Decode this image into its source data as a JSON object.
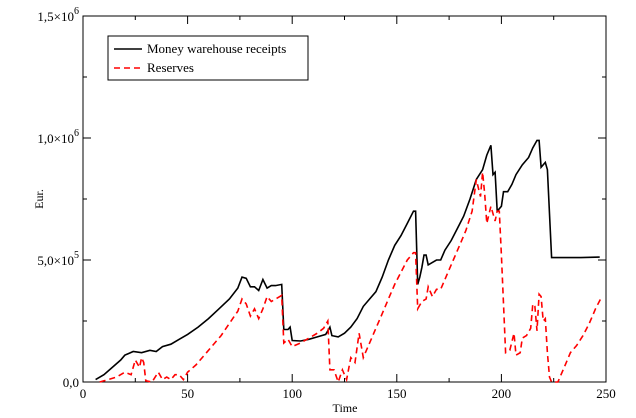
{
  "chart_data": {
    "type": "line",
    "xlabel": "Time",
    "ylabel": "Eur.",
    "xlim": [
      0,
      250
    ],
    "ylim": [
      0,
      1500000
    ],
    "x_ticks": [
      {
        "value": 0,
        "label": "0"
      },
      {
        "value": 50,
        "label": "50"
      },
      {
        "value": 100,
        "label": "100"
      },
      {
        "value": 150,
        "label": "150"
      },
      {
        "value": 200,
        "label": "200"
      },
      {
        "value": 250,
        "label": "250"
      }
    ],
    "y_ticks": [
      {
        "value": 0,
        "mantissa": "0,0",
        "exponent": ""
      },
      {
        "value": 500000,
        "mantissa": "5,0×10",
        "exponent": "5"
      },
      {
        "value": 1000000,
        "mantissa": "1,0×10",
        "exponent": "6"
      },
      {
        "value": 1500000,
        "mantissa": "1,5×10",
        "exponent": "6"
      }
    ],
    "grid": false,
    "legend_position": "top-left",
    "series": [
      {
        "name": "Money warehouse receipts",
        "color": "#000000",
        "dash": "solid",
        "points": [
          [
            6,
            10000
          ],
          [
            10,
            30000
          ],
          [
            14,
            60000
          ],
          [
            18,
            90000
          ],
          [
            20,
            110000
          ],
          [
            24,
            125000
          ],
          [
            28,
            120000
          ],
          [
            32,
            130000
          ],
          [
            35,
            125000
          ],
          [
            38,
            145000
          ],
          [
            42,
            155000
          ],
          [
            46,
            175000
          ],
          [
            50,
            195000
          ],
          [
            55,
            225000
          ],
          [
            60,
            260000
          ],
          [
            65,
            300000
          ],
          [
            70,
            340000
          ],
          [
            74,
            385000
          ],
          [
            76,
            430000
          ],
          [
            78,
            425000
          ],
          [
            80,
            390000
          ],
          [
            82,
            390000
          ],
          [
            84,
            375000
          ],
          [
            86,
            420000
          ],
          [
            88,
            385000
          ],
          [
            90,
            395000
          ],
          [
            92,
            395000
          ],
          [
            95,
            400000
          ],
          [
            96,
            215000
          ],
          [
            98,
            215000
          ],
          [
            99,
            225000
          ],
          [
            100,
            170000
          ],
          [
            104,
            168000
          ],
          [
            108,
            175000
          ],
          [
            112,
            185000
          ],
          [
            116,
            195000
          ],
          [
            118,
            225000
          ],
          [
            119,
            190000
          ],
          [
            122,
            185000
          ],
          [
            125,
            200000
          ],
          [
            128,
            225000
          ],
          [
            131,
            260000
          ],
          [
            134,
            310000
          ],
          [
            137,
            340000
          ],
          [
            140,
            370000
          ],
          [
            143,
            430000
          ],
          [
            146,
            500000
          ],
          [
            149,
            560000
          ],
          [
            152,
            600000
          ],
          [
            155,
            650000
          ],
          [
            158,
            700000
          ],
          [
            159,
            700000
          ],
          [
            160,
            400000
          ],
          [
            161,
            430000
          ],
          [
            162,
            470000
          ],
          [
            163,
            520000
          ],
          [
            164,
            520000
          ],
          [
            165,
            480000
          ],
          [
            167,
            490000
          ],
          [
            169,
            500000
          ],
          [
            171,
            500000
          ],
          [
            173,
            540000
          ],
          [
            176,
            580000
          ],
          [
            179,
            630000
          ],
          [
            182,
            680000
          ],
          [
            185,
            750000
          ],
          [
            188,
            830000
          ],
          [
            191,
            870000
          ],
          [
            193,
            930000
          ],
          [
            195,
            970000
          ],
          [
            196,
            850000
          ],
          [
            197,
            860000
          ],
          [
            198,
            700000
          ],
          [
            200,
            720000
          ],
          [
            201,
            780000
          ],
          [
            203,
            780000
          ],
          [
            205,
            810000
          ],
          [
            207,
            850000
          ],
          [
            210,
            890000
          ],
          [
            213,
            920000
          ],
          [
            215,
            960000
          ],
          [
            217,
            990000
          ],
          [
            218,
            990000
          ],
          [
            219,
            880000
          ],
          [
            221,
            900000
          ],
          [
            222,
            870000
          ],
          [
            224,
            510000
          ],
          [
            230,
            510000
          ],
          [
            238,
            510000
          ],
          [
            247,
            512000
          ]
        ]
      },
      {
        "name": "Reserves",
        "color": "#ff0000",
        "dash": "dashed",
        "points": [
          [
            8,
            0
          ],
          [
            12,
            10000
          ],
          [
            16,
            20000
          ],
          [
            20,
            40000
          ],
          [
            23,
            30000
          ],
          [
            25,
            90000
          ],
          [
            27,
            60000
          ],
          [
            28,
            100000
          ],
          [
            29,
            80000
          ],
          [
            30,
            5000
          ],
          [
            33,
            0
          ],
          [
            36,
            40000
          ],
          [
            38,
            10000
          ],
          [
            40,
            20000
          ],
          [
            42,
            10000
          ],
          [
            44,
            30000
          ],
          [
            46,
            30000
          ],
          [
            48,
            10000
          ],
          [
            50,
            40000
          ],
          [
            54,
            70000
          ],
          [
            58,
            110000
          ],
          [
            62,
            150000
          ],
          [
            66,
            190000
          ],
          [
            70,
            240000
          ],
          [
            74,
            290000
          ],
          [
            76,
            340000
          ],
          [
            78,
            320000
          ],
          [
            80,
            270000
          ],
          [
            82,
            300000
          ],
          [
            84,
            260000
          ],
          [
            86,
            300000
          ],
          [
            88,
            350000
          ],
          [
            90,
            330000
          ],
          [
            92,
            340000
          ],
          [
            95,
            355000
          ],
          [
            96,
            160000
          ],
          [
            98,
            175000
          ],
          [
            100,
            145000
          ],
          [
            104,
            160000
          ],
          [
            108,
            180000
          ],
          [
            112,
            200000
          ],
          [
            115,
            220000
          ],
          [
            117,
            250000
          ],
          [
            118,
            50000
          ],
          [
            120,
            50000
          ],
          [
            122,
            0
          ],
          [
            124,
            50000
          ],
          [
            126,
            10000
          ],
          [
            128,
            100000
          ],
          [
            130,
            80000
          ],
          [
            132,
            200000
          ],
          [
            134,
            100000
          ],
          [
            136,
            140000
          ],
          [
            138,
            180000
          ],
          [
            140,
            220000
          ],
          [
            143,
            280000
          ],
          [
            146,
            340000
          ],
          [
            149,
            400000
          ],
          [
            152,
            450000
          ],
          [
            155,
            500000
          ],
          [
            158,
            530000
          ],
          [
            159,
            530000
          ],
          [
            160,
            300000
          ],
          [
            162,
            330000
          ],
          [
            164,
            340000
          ],
          [
            165,
            390000
          ],
          [
            167,
            350000
          ],
          [
            169,
            380000
          ],
          [
            171,
            380000
          ],
          [
            174,
            440000
          ],
          [
            177,
            500000
          ],
          [
            180,
            560000
          ],
          [
            183,
            620000
          ],
          [
            186,
            700000
          ],
          [
            188,
            830000
          ],
          [
            190,
            760000
          ],
          [
            191,
            860000
          ],
          [
            192,
            770000
          ],
          [
            193,
            650000
          ],
          [
            195,
            720000
          ],
          [
            197,
            660000
          ],
          [
            198,
            700000
          ],
          [
            199,
            700000
          ],
          [
            200,
            520000
          ],
          [
            202,
            120000
          ],
          [
            204,
            130000
          ],
          [
            206,
            200000
          ],
          [
            207,
            110000
          ],
          [
            209,
            120000
          ],
          [
            210,
            180000
          ],
          [
            212,
            190000
          ],
          [
            214,
            220000
          ],
          [
            215,
            320000
          ],
          [
            216,
            310000
          ],
          [
            217,
            210000
          ],
          [
            218,
            360000
          ],
          [
            219,
            350000
          ],
          [
            220,
            250000
          ],
          [
            221,
            260000
          ],
          [
            222,
            120000
          ],
          [
            223,
            20000
          ],
          [
            224,
            0
          ],
          [
            227,
            0
          ],
          [
            230,
            60000
          ],
          [
            233,
            120000
          ],
          [
            236,
            150000
          ],
          [
            239,
            190000
          ],
          [
            242,
            240000
          ],
          [
            245,
            300000
          ],
          [
            248,
            350000
          ]
        ]
      }
    ]
  }
}
